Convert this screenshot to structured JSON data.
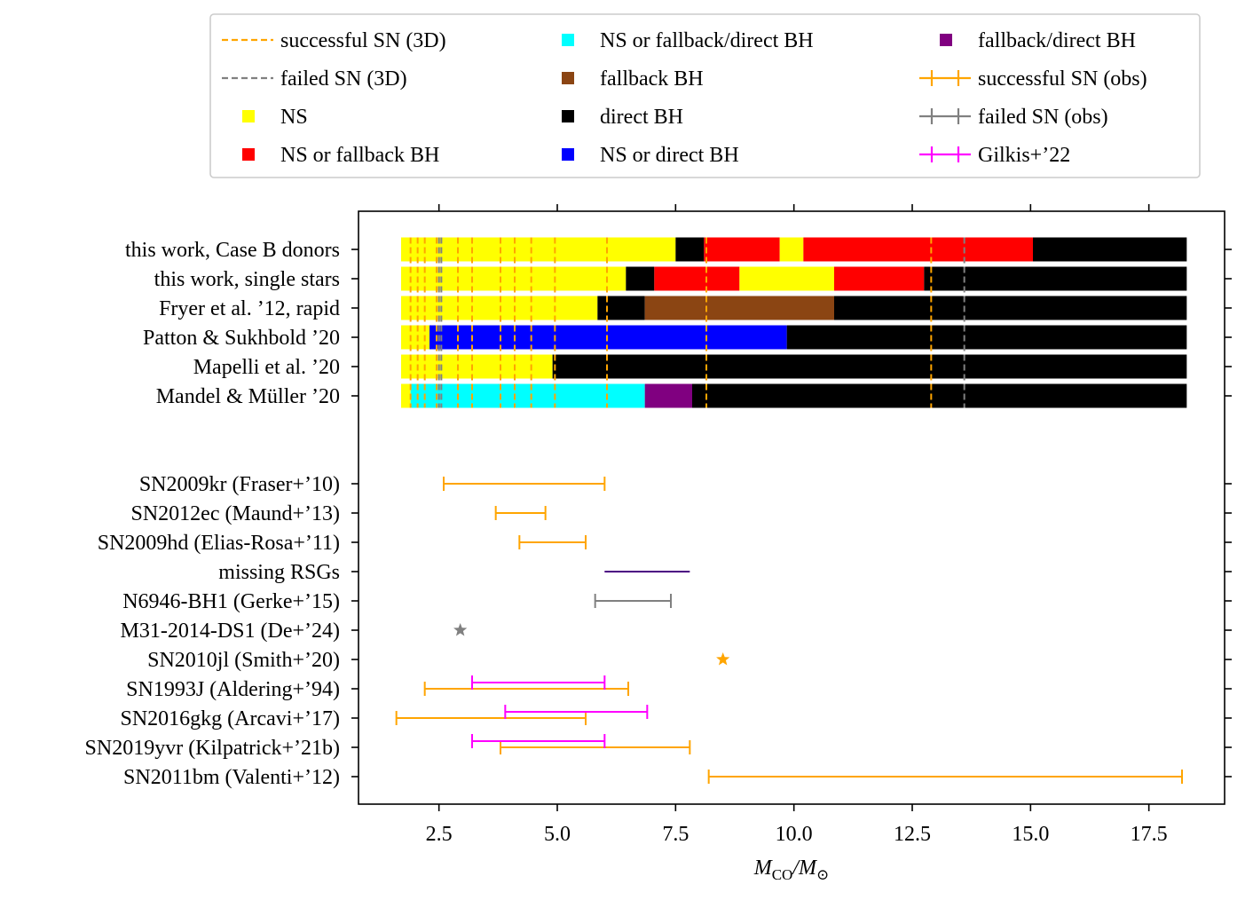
{
  "chart_data": {
    "type": "gantt-range",
    "xlabel": "M_CO/M_⊙",
    "xlabel_main": "M",
    "xlabel_sub1": "CO",
    "xlabel_sep": "/M",
    "xlabel_sub2": "⊙",
    "xlim": [
      0.8,
      19.1
    ],
    "xticks": [
      2.5,
      5.0,
      7.5,
      10.0,
      12.5,
      15.0,
      17.5
    ],
    "xtick_labels": [
      "2.5",
      "5.0",
      "7.5",
      "10.0",
      "12.5",
      "15.0",
      "17.5"
    ],
    "colors": {
      "NS": "#ffff00",
      "NSfb": "#ff0000",
      "NSdir": "#0000ff",
      "NSfbdir": "#00ffff",
      "fb": "#8b4513",
      "dir": "#000000",
      "fbdir": "#800080",
      "succ": "#ffa500",
      "fail": "#808080",
      "gilkis": "#ff00ff",
      "missing": "#4b0082"
    },
    "legend": [
      {
        "kind": "dash",
        "color": "succ",
        "label": "successful SN (3D)"
      },
      {
        "kind": "dash",
        "color": "fail",
        "label": "failed SN (3D)"
      },
      {
        "kind": "square",
        "color": "NS",
        "label": "NS"
      },
      {
        "kind": "square",
        "color": "NSfb",
        "label": "NS or fallback BH"
      },
      {
        "kind": "square",
        "color": "NSfbdir",
        "label": "NS or fallback/direct BH"
      },
      {
        "kind": "square",
        "color": "fb",
        "label": "fallback BH"
      },
      {
        "kind": "square",
        "color": "dir",
        "label": "direct BH"
      },
      {
        "kind": "square",
        "color": "NSdir",
        "label": "NS or direct BH"
      },
      {
        "kind": "square",
        "color": "fbdir",
        "label": "fallback/direct BH"
      },
      {
        "kind": "errbar",
        "color": "succ",
        "label": "successful SN (obs)"
      },
      {
        "kind": "errbar",
        "color": "fail",
        "label": "failed SN (obs)"
      },
      {
        "kind": "errbar",
        "color": "gilkis",
        "label": "Gilkis+’22"
      }
    ],
    "models": [
      {
        "label": "this work, Case B donors",
        "segments": [
          [
            1.7,
            7.5,
            "NS"
          ],
          [
            7.5,
            8.1,
            "dir"
          ],
          [
            8.1,
            9.7,
            "NSfb"
          ],
          [
            9.7,
            10.2,
            "NS"
          ],
          [
            10.2,
            15.05,
            "NSfb"
          ],
          [
            15.05,
            18.3,
            "dir"
          ]
        ]
      },
      {
        "label": "this work, single stars",
        "segments": [
          [
            1.7,
            6.45,
            "NS"
          ],
          [
            6.45,
            7.05,
            "dir"
          ],
          [
            7.05,
            8.85,
            "NSfb"
          ],
          [
            8.85,
            10.85,
            "NS"
          ],
          [
            10.85,
            12.75,
            "NSfb"
          ],
          [
            12.75,
            18.3,
            "dir"
          ]
        ]
      },
      {
        "label": "Fryer et al. ’12, rapid",
        "segments": [
          [
            1.7,
            5.85,
            "NS"
          ],
          [
            5.85,
            6.85,
            "dir"
          ],
          [
            6.85,
            10.85,
            "fb"
          ],
          [
            10.85,
            18.3,
            "dir"
          ]
        ]
      },
      {
        "label": "Patton & Sukhbold ’20",
        "segments": [
          [
            1.7,
            2.3,
            "NS"
          ],
          [
            2.3,
            9.85,
            "NSdir"
          ],
          [
            9.85,
            18.3,
            "dir"
          ]
        ]
      },
      {
        "label": "Mapelli et al. ’20",
        "segments": [
          [
            1.7,
            4.9,
            "NS"
          ],
          [
            4.9,
            18.3,
            "dir"
          ]
        ]
      },
      {
        "label": "Mandel & Müller ’20",
        "segments": [
          [
            1.7,
            1.9,
            "NS"
          ],
          [
            1.9,
            6.85,
            "NSfbdir"
          ],
          [
            6.85,
            7.85,
            "fbdir"
          ],
          [
            7.85,
            18.3,
            "dir"
          ]
        ]
      }
    ],
    "succ_3d_lines": [
      1.9,
      2.05,
      2.2,
      2.45,
      2.9,
      3.2,
      3.8,
      4.1,
      4.45,
      4.95,
      6.05,
      8.15,
      12.9
    ],
    "fail_3d_lines": [
      2.5,
      2.55,
      13.6
    ],
    "observations": [
      {
        "label": "SN2009kr (Fraser+’10)",
        "bars": [
          {
            "lo": 2.6,
            "hi": 6.0,
            "color": "succ",
            "caps": true
          }
        ]
      },
      {
        "label": "SN2012ec (Maund+’13)",
        "bars": [
          {
            "lo": 3.7,
            "hi": 4.75,
            "color": "succ",
            "caps": true
          }
        ]
      },
      {
        "label": "SN2009hd (Elias-Rosa+’11)",
        "bars": [
          {
            "lo": 4.2,
            "hi": 5.6,
            "color": "succ",
            "caps": true
          }
        ]
      },
      {
        "label": "missing RSGs",
        "bars": [
          {
            "lo": 6.0,
            "hi": 7.8,
            "color": "missing",
            "caps": false
          }
        ]
      },
      {
        "label": "N6946-BH1 (Gerke+’15)",
        "bars": [
          {
            "lo": 5.8,
            "hi": 7.4,
            "color": "fail",
            "caps": true
          }
        ]
      },
      {
        "label": "M31-2014-DS1 (De+’24)",
        "star": {
          "x": 2.95,
          "color": "fail"
        }
      },
      {
        "label": "SN2010jl (Smith+’20)",
        "star": {
          "x": 8.5,
          "color": "succ"
        }
      },
      {
        "label": "SN1993J (Aldering+’94)",
        "bars": [
          {
            "lo": 2.2,
            "hi": 6.5,
            "color": "succ",
            "caps": true,
            "dy": 0
          },
          {
            "lo": 3.2,
            "hi": 6.0,
            "color": "gilkis",
            "caps": true,
            "dy": -7
          }
        ]
      },
      {
        "label": "SN2016gkg (Arcavi+’17)",
        "bars": [
          {
            "lo": 1.6,
            "hi": 5.6,
            "color": "succ",
            "caps": true,
            "dy": 0
          },
          {
            "lo": 3.9,
            "hi": 6.9,
            "color": "gilkis",
            "caps": true,
            "dy": -7
          }
        ]
      },
      {
        "label": "SN2019yvr (Kilpatrick+’21b)",
        "bars": [
          {
            "lo": 3.8,
            "hi": 7.8,
            "color": "succ",
            "caps": true,
            "dy": 0
          },
          {
            "lo": 3.2,
            "hi": 6.0,
            "color": "gilkis",
            "caps": true,
            "dy": -7
          }
        ]
      },
      {
        "label": "SN2011bm (Valenti+’12)",
        "bars": [
          {
            "lo": 8.2,
            "hi": 18.2,
            "color": "succ",
            "caps": true
          }
        ]
      }
    ]
  }
}
